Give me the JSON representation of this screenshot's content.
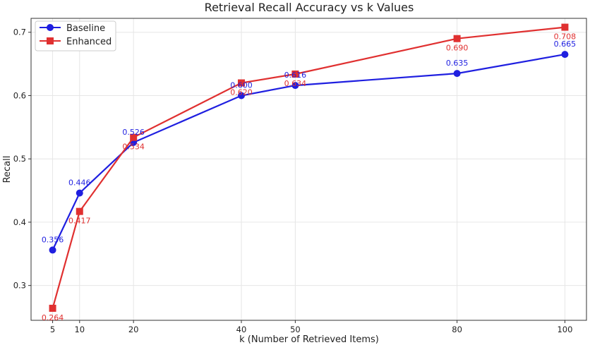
{
  "chart_data": {
    "type": "line",
    "title": "Retrieval Recall Accuracy vs k Values",
    "xlabel": "k (Number of Retrieved Items)",
    "ylabel": "Recall",
    "x": [
      5,
      10,
      20,
      40,
      50,
      80,
      100
    ],
    "xticks": [
      "5",
      "10",
      "20",
      "40",
      "50",
      "80",
      "100"
    ],
    "yticks": [
      "0.3",
      "0.4",
      "0.5",
      "0.6",
      "0.7"
    ],
    "xlim": [
      1,
      104
    ],
    "ylim": [
      0.245,
      0.722
    ],
    "grid": true,
    "legend_position": "top-left",
    "series": [
      {
        "name": "Baseline",
        "color": "#1f1fe0",
        "marker": "circle",
        "values": [
          0.356,
          0.446,
          0.526,
          0.6,
          0.616,
          0.635,
          0.665
        ],
        "labels": [
          "0.356",
          "0.446",
          "0.526",
          "0.600",
          "0.616",
          "0.635",
          "0.665"
        ],
        "label_side": "above"
      },
      {
        "name": "Enhanced",
        "color": "#e03030",
        "marker": "square",
        "values": [
          0.264,
          0.417,
          0.534,
          0.62,
          0.634,
          0.69,
          0.708
        ],
        "labels": [
          "0.264",
          "0.417",
          "0.534",
          "0.620",
          "0.634",
          "0.690",
          "0.708"
        ],
        "label_side": "below"
      }
    ]
  }
}
